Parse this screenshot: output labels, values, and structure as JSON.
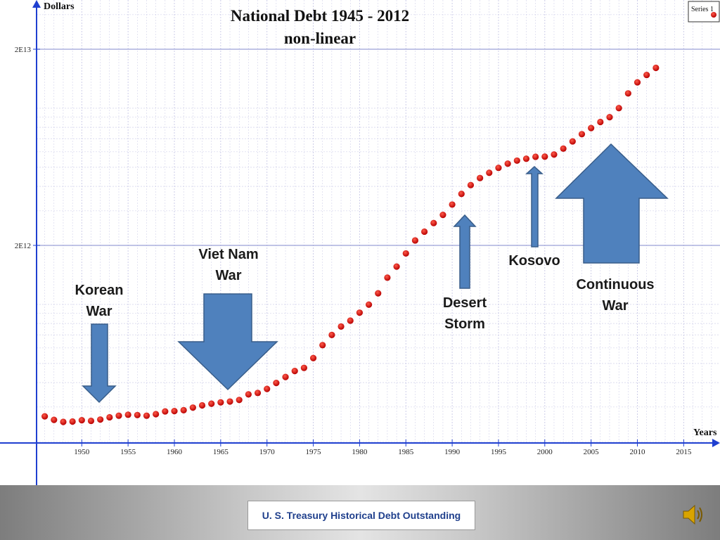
{
  "chart_data": {
    "type": "scatter",
    "title": "National Debt 1945 - 2012",
    "subtitle": "non-linear",
    "xlabel": "Years",
    "ylabel": "Dollars",
    "y_scale": "log",
    "xlim": [
      1945,
      2018
    ],
    "x_ticks": [
      1950,
      1955,
      1960,
      1965,
      1970,
      1975,
      1980,
      1985,
      1990,
      1995,
      2000,
      2005,
      2010,
      2015
    ],
    "y_tick_labels": [
      {
        "value": 2000000000000,
        "label": "2E12"
      },
      {
        "value": 20000000000000,
        "label": "2E13"
      }
    ],
    "grid": true,
    "legend": {
      "position": "top-right",
      "entries": [
        "Series 1"
      ]
    },
    "series": [
      {
        "name": "Series 1",
        "color": "#e00000",
        "x": [
          1946,
          1947,
          1948,
          1949,
          1950,
          1951,
          1952,
          1953,
          1954,
          1955,
          1956,
          1957,
          1958,
          1959,
          1960,
          1961,
          1962,
          1963,
          1964,
          1965,
          1966,
          1967,
          1968,
          1969,
          1970,
          1971,
          1972,
          1973,
          1974,
          1975,
          1976,
          1977,
          1978,
          1979,
          1980,
          1981,
          1982,
          1983,
          1984,
          1985,
          1986,
          1987,
          1988,
          1989,
          1990,
          1991,
          1992,
          1993,
          1994,
          1995,
          1996,
          1997,
          1998,
          1999,
          2000,
          2001,
          2002,
          2003,
          2004,
          2005,
          2006,
          2007,
          2008,
          2009,
          2010,
          2011,
          2012
        ],
        "y": [
          269000000000,
          258000000000,
          252000000000,
          253000000000,
          257000000000,
          255000000000,
          259000000000,
          266000000000,
          271000000000,
          274000000000,
          273000000000,
          271000000000,
          276000000000,
          285000000000,
          286000000000,
          289000000000,
          298000000000,
          306000000000,
          312000000000,
          317000000000,
          320000000000,
          326000000000,
          348000000000,
          354000000000,
          371000000000,
          398000000000,
          427000000000,
          458000000000,
          475000000000,
          533000000000,
          620000000000,
          699000000000,
          772000000000,
          827000000000,
          908000000000,
          998000000000,
          1140000000000,
          1370000000000,
          1560000000000,
          1820000000000,
          2120000000000,
          2350000000000,
          2600000000000,
          2860000000000,
          3230000000000,
          3660000000000,
          4060000000000,
          4410000000000,
          4690000000000,
          4970000000000,
          5220000000000,
          5410000000000,
          5530000000000,
          5660000000000,
          5670000000000,
          5810000000000,
          6230000000000,
          6780000000000,
          7380000000000,
          7930000000000,
          8510000000000,
          9010000000000,
          10020000000000,
          11910000000000,
          13560000000000,
          14790000000000,
          16070000000000
        ]
      }
    ],
    "annotations": [
      {
        "text": "Korean\nWar",
        "direction": "down"
      },
      {
        "text": "Viet Nam\nWar",
        "direction": "down"
      },
      {
        "text": "Desert\nStorm",
        "direction": "up"
      },
      {
        "text": "Kosovo",
        "direction": "up"
      },
      {
        "text": "Continuous\nWar",
        "direction": "up"
      }
    ],
    "colors": {
      "axis": "#1f3fd0",
      "grid": "#c8c8e6",
      "arrow_fill": "#4f81bd",
      "arrow_stroke": "#385d8a"
    }
  },
  "footer": {
    "source": "U. S. Treasury Historical Debt Outstanding",
    "sound_icon": "speaker-icon"
  }
}
